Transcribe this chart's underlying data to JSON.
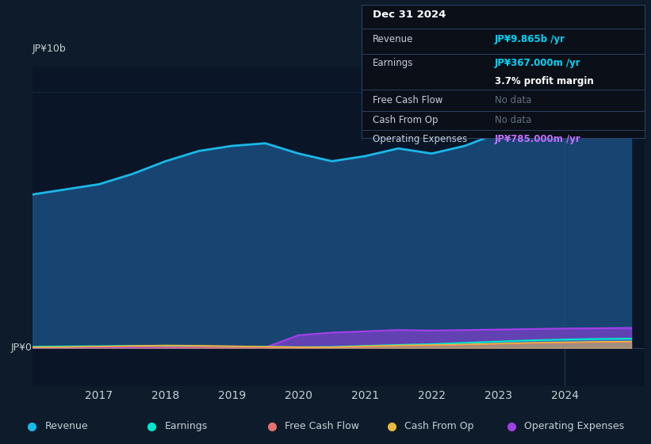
{
  "background_color": "#0d1b2a",
  "chart_bg_color": "#0a1628",
  "ylabel_top": "JP¥10b",
  "ylabel_bottom": "JP¥0",
  "years": [
    2016.0,
    2016.5,
    2017.0,
    2017.5,
    2018.0,
    2018.5,
    2019.0,
    2019.5,
    2020.0,
    2020.5,
    2021.0,
    2021.5,
    2022.0,
    2022.5,
    2023.0,
    2023.5,
    2024.0,
    2024.5,
    2025.0
  ],
  "revenue": [
    6.0,
    6.2,
    6.4,
    6.8,
    7.3,
    7.7,
    7.9,
    8.0,
    7.6,
    7.3,
    7.5,
    7.8,
    7.6,
    7.9,
    8.4,
    9.0,
    9.5,
    9.8,
    9.865
  ],
  "earnings": [
    0.05,
    0.06,
    0.07,
    0.08,
    0.07,
    0.06,
    0.05,
    0.04,
    0.03,
    0.04,
    0.08,
    0.12,
    0.15,
    0.2,
    0.25,
    0.3,
    0.33,
    0.355,
    0.367
  ],
  "free_cash_flow": [
    0.02,
    0.03,
    0.04,
    0.05,
    0.04,
    0.03,
    0.02,
    0.02,
    0.01,
    0.01,
    0.05,
    0.08,
    0.1,
    0.12,
    0.15,
    0.18,
    0.2,
    0.22,
    0.23
  ],
  "cash_from_op": [
    0.03,
    0.04,
    0.06,
    0.08,
    0.1,
    0.09,
    0.07,
    0.05,
    0.03,
    0.03,
    0.07,
    0.1,
    0.12,
    0.14,
    0.17,
    0.2,
    0.22,
    0.24,
    0.25
  ],
  "operating_expenses": [
    0.01,
    0.02,
    0.02,
    0.02,
    0.02,
    0.02,
    0.02,
    0.02,
    0.5,
    0.6,
    0.65,
    0.7,
    0.68,
    0.7,
    0.72,
    0.74,
    0.76,
    0.77,
    0.785
  ],
  "revenue_color": "#1ab8e8",
  "revenue_fill_color": "#1a4a7a",
  "earnings_color": "#00e5cc",
  "free_cash_flow_color": "#e87070",
  "cash_from_op_color": "#e8b840",
  "operating_expenses_color": "#a040e8",
  "grid_color": "#1e3a5a",
  "text_color": "#c8d0d8",
  "highlight_color_cyan": "#00d4f5",
  "highlight_color_purple": "#c070ff",
  "info_box": {
    "title": "Dec 31 2024",
    "revenue_label": "Revenue",
    "revenue_value": "JP¥9.865b /yr",
    "earnings_label": "Earnings",
    "earnings_value": "JP¥367.000m /yr",
    "margin_text": "3.7% profit margin",
    "fcf_label": "Free Cash Flow",
    "fcf_value": "No data",
    "cfo_label": "Cash From Op",
    "cfo_value": "No data",
    "opex_label": "Operating Expenses",
    "opex_value": "JP¥785.000m /yr"
  },
  "legend": [
    {
      "label": "Revenue",
      "color": "#1ab8e8"
    },
    {
      "label": "Earnings",
      "color": "#00e5cc"
    },
    {
      "label": "Free Cash Flow",
      "color": "#e87070"
    },
    {
      "label": "Cash From Op",
      "color": "#e8b840"
    },
    {
      "label": "Operating Expenses",
      "color": "#a040e8"
    }
  ],
  "xlim": [
    2016.0,
    2025.2
  ],
  "ylim": [
    -1.5,
    11.0
  ],
  "xticks": [
    2017,
    2018,
    2019,
    2020,
    2021,
    2022,
    2023,
    2024
  ],
  "zero_line_y": 0.0
}
